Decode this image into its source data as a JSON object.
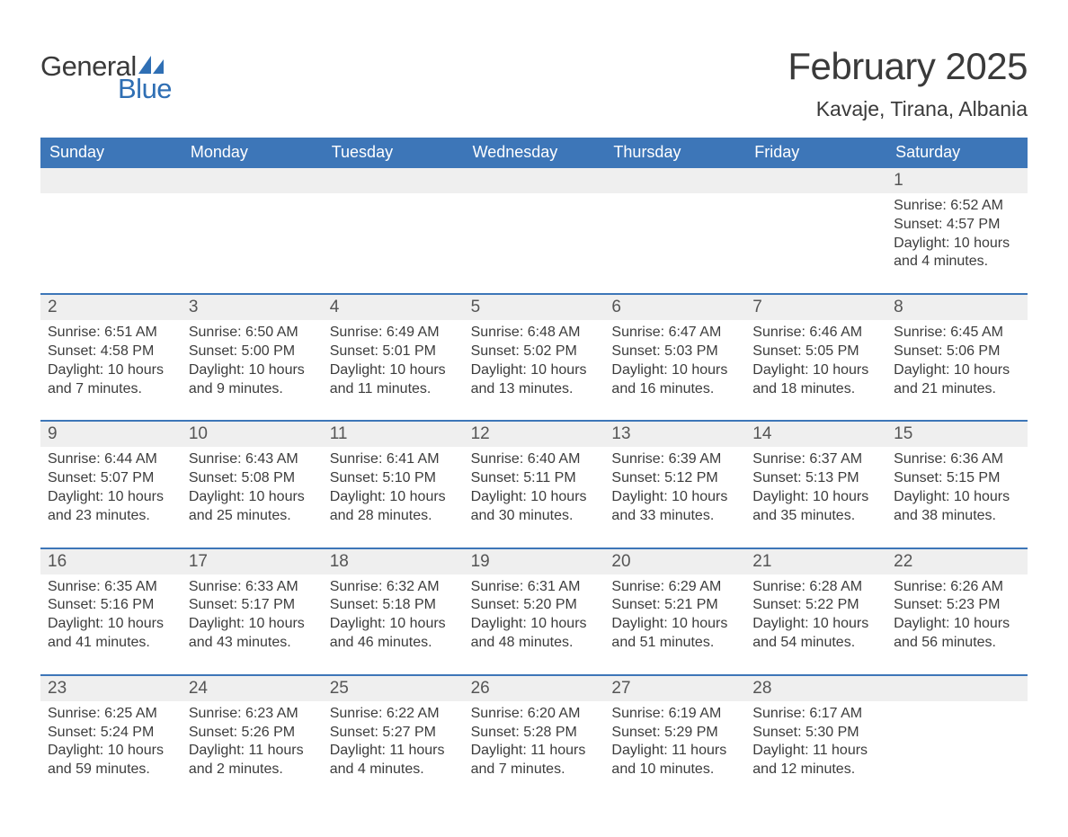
{
  "logo": {
    "word1": "General",
    "word2": "Blue"
  },
  "title": {
    "month": "February 2025",
    "location": "Kavaje, Tirana, Albania"
  },
  "colors": {
    "header_bg": "#3d76b8",
    "header_text": "#ffffff",
    "stripe_bg": "#efefef",
    "rule": "#3d76b8",
    "body_text": "#3c3c3c",
    "logo_blue": "#2f6fb4"
  },
  "fonts": {
    "month_title_pt": 42,
    "location_pt": 23,
    "dow_pt": 18,
    "daynum_pt": 19,
    "body_pt": 16
  },
  "layout": {
    "cols": 7,
    "weeks": 5
  },
  "days_of_week": [
    "Sunday",
    "Monday",
    "Tuesday",
    "Wednesday",
    "Thursday",
    "Friday",
    "Saturday"
  ],
  "weeks": [
    [
      null,
      null,
      null,
      null,
      null,
      null,
      {
        "n": 1,
        "sunrise": "6:52 AM",
        "sunset": "4:57 PM",
        "daylight": "10 hours and 4 minutes."
      }
    ],
    [
      {
        "n": 2,
        "sunrise": "6:51 AM",
        "sunset": "4:58 PM",
        "daylight": "10 hours and 7 minutes."
      },
      {
        "n": 3,
        "sunrise": "6:50 AM",
        "sunset": "5:00 PM",
        "daylight": "10 hours and 9 minutes."
      },
      {
        "n": 4,
        "sunrise": "6:49 AM",
        "sunset": "5:01 PM",
        "daylight": "10 hours and 11 minutes."
      },
      {
        "n": 5,
        "sunrise": "6:48 AM",
        "sunset": "5:02 PM",
        "daylight": "10 hours and 13 minutes."
      },
      {
        "n": 6,
        "sunrise": "6:47 AM",
        "sunset": "5:03 PM",
        "daylight": "10 hours and 16 minutes."
      },
      {
        "n": 7,
        "sunrise": "6:46 AM",
        "sunset": "5:05 PM",
        "daylight": "10 hours and 18 minutes."
      },
      {
        "n": 8,
        "sunrise": "6:45 AM",
        "sunset": "5:06 PM",
        "daylight": "10 hours and 21 minutes."
      }
    ],
    [
      {
        "n": 9,
        "sunrise": "6:44 AM",
        "sunset": "5:07 PM",
        "daylight": "10 hours and 23 minutes."
      },
      {
        "n": 10,
        "sunrise": "6:43 AM",
        "sunset": "5:08 PM",
        "daylight": "10 hours and 25 minutes."
      },
      {
        "n": 11,
        "sunrise": "6:41 AM",
        "sunset": "5:10 PM",
        "daylight": "10 hours and 28 minutes."
      },
      {
        "n": 12,
        "sunrise": "6:40 AM",
        "sunset": "5:11 PM",
        "daylight": "10 hours and 30 minutes."
      },
      {
        "n": 13,
        "sunrise": "6:39 AM",
        "sunset": "5:12 PM",
        "daylight": "10 hours and 33 minutes."
      },
      {
        "n": 14,
        "sunrise": "6:37 AM",
        "sunset": "5:13 PM",
        "daylight": "10 hours and 35 minutes."
      },
      {
        "n": 15,
        "sunrise": "6:36 AM",
        "sunset": "5:15 PM",
        "daylight": "10 hours and 38 minutes."
      }
    ],
    [
      {
        "n": 16,
        "sunrise": "6:35 AM",
        "sunset": "5:16 PM",
        "daylight": "10 hours and 41 minutes."
      },
      {
        "n": 17,
        "sunrise": "6:33 AM",
        "sunset": "5:17 PM",
        "daylight": "10 hours and 43 minutes."
      },
      {
        "n": 18,
        "sunrise": "6:32 AM",
        "sunset": "5:18 PM",
        "daylight": "10 hours and 46 minutes."
      },
      {
        "n": 19,
        "sunrise": "6:31 AM",
        "sunset": "5:20 PM",
        "daylight": "10 hours and 48 minutes."
      },
      {
        "n": 20,
        "sunrise": "6:29 AM",
        "sunset": "5:21 PM",
        "daylight": "10 hours and 51 minutes."
      },
      {
        "n": 21,
        "sunrise": "6:28 AM",
        "sunset": "5:22 PM",
        "daylight": "10 hours and 54 minutes."
      },
      {
        "n": 22,
        "sunrise": "6:26 AM",
        "sunset": "5:23 PM",
        "daylight": "10 hours and 56 minutes."
      }
    ],
    [
      {
        "n": 23,
        "sunrise": "6:25 AM",
        "sunset": "5:24 PM",
        "daylight": "10 hours and 59 minutes."
      },
      {
        "n": 24,
        "sunrise": "6:23 AM",
        "sunset": "5:26 PM",
        "daylight": "11 hours and 2 minutes."
      },
      {
        "n": 25,
        "sunrise": "6:22 AM",
        "sunset": "5:27 PM",
        "daylight": "11 hours and 4 minutes."
      },
      {
        "n": 26,
        "sunrise": "6:20 AM",
        "sunset": "5:28 PM",
        "daylight": "11 hours and 7 minutes."
      },
      {
        "n": 27,
        "sunrise": "6:19 AM",
        "sunset": "5:29 PM",
        "daylight": "11 hours and 10 minutes."
      },
      {
        "n": 28,
        "sunrise": "6:17 AM",
        "sunset": "5:30 PM",
        "daylight": "11 hours and 12 minutes."
      },
      null
    ]
  ],
  "labels": {
    "sunrise": "Sunrise:",
    "sunset": "Sunset:",
    "daylight": "Daylight:"
  }
}
